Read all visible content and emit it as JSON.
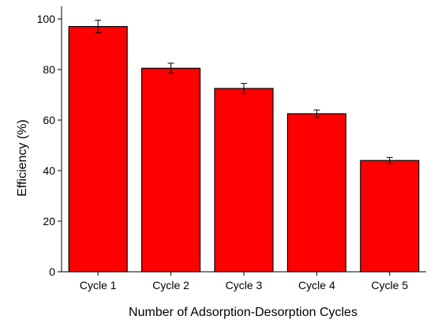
{
  "chart_data": {
    "type": "bar",
    "title": "",
    "xlabel": "Number of Adsorption-Desorption Cycles",
    "ylabel": "Efficiency (%)",
    "categories": [
      "Cycle 1",
      "Cycle 2",
      "Cycle 3",
      "Cycle 4",
      "Cycle 5"
    ],
    "values": [
      97,
      80.5,
      72.5,
      62.5,
      44
    ],
    "errors": [
      2.5,
      2,
      2,
      1.5,
      1.2
    ],
    "ylim": [
      0,
      105
    ],
    "yticks": [
      0,
      20,
      40,
      60,
      80,
      100
    ],
    "grid": false,
    "legend": "none",
    "colors": {
      "bar_fill": "#ff0000",
      "bar_stroke": "#000000",
      "axis": "#000000",
      "error_bar": "#000000"
    }
  }
}
